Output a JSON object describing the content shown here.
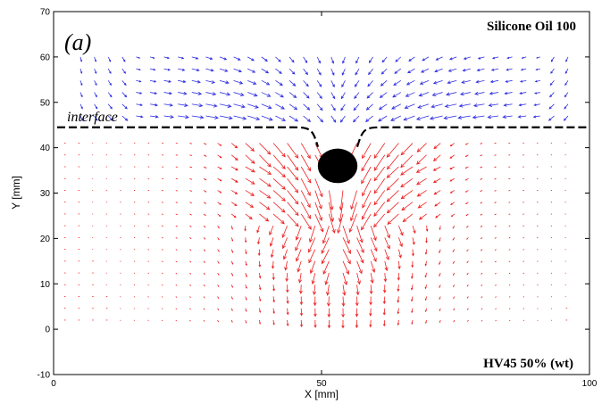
{
  "chart_data": {
    "type": "quiver",
    "title": "",
    "panel_label": "(a)",
    "xlabel": "X [mm]",
    "ylabel": "Y [mm]",
    "xlim": [
      0,
      100
    ],
    "ylim": [
      -10,
      70
    ],
    "x_ticks": [
      "0",
      "50",
      "100"
    ],
    "y_ticks": [
      "-10",
      "0",
      "10",
      "20",
      "30",
      "40",
      "50",
      "60",
      "70"
    ],
    "grid": false,
    "annotations": {
      "interface": "interface",
      "upper_fluid": "Silicone Oil 100",
      "lower_fluid": "HV45 50% (wt)"
    },
    "interface_y": 44.5,
    "sphere": {
      "x": 53,
      "y": 36,
      "rx": 3.7,
      "ry": 3.8
    },
    "series": [
      {
        "name": "",
        "region": "upper",
        "color": "#3030e0",
        "y_range": [
          47,
          62
        ],
        "x_range": [
          5,
          97
        ]
      },
      {
        "name": "",
        "region": "lower",
        "color": "#ee2020",
        "y_range": [
          2,
          42
        ],
        "x_range": [
          2,
          98
        ]
      }
    ]
  }
}
